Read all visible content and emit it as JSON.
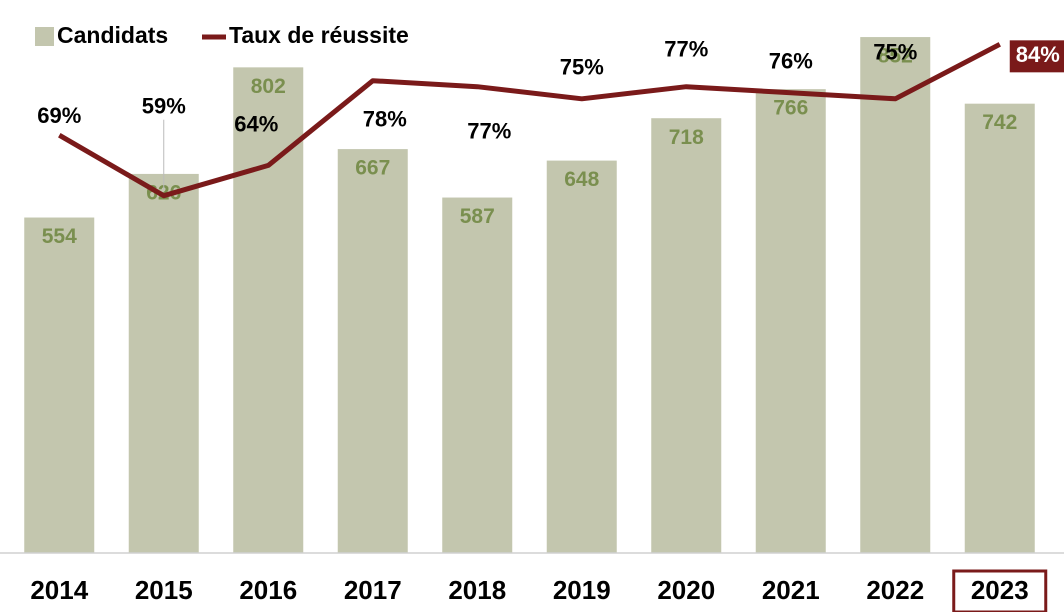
{
  "chart_data": {
    "type": "bar-line",
    "categories": [
      "2014",
      "2015",
      "2016",
      "2017",
      "2018",
      "2019",
      "2020",
      "2021",
      "2022",
      "2023"
    ],
    "series": [
      {
        "name": "Candidats",
        "type": "bar",
        "color": "#c3c6ae",
        "label_color": "#7a8f4f",
        "values": [
          554,
          626,
          802,
          667,
          587,
          648,
          718,
          766,
          852,
          742
        ]
      },
      {
        "name": "Taux de réussite",
        "type": "line",
        "axis": "y2",
        "color": "#7a1a1a",
        "values": [
          69,
          59,
          64,
          78,
          77,
          75,
          77,
          76,
          75,
          84
        ],
        "value_labels": [
          "69%",
          "59%",
          "64%",
          "78%",
          "77%",
          "75%",
          "77%",
          "76%",
          "75%",
          "84%"
        ]
      }
    ],
    "ylim": [
      0,
      900
    ],
    "y2lim": [
      0,
      90
    ],
    "legend": "top-left"
  }
}
